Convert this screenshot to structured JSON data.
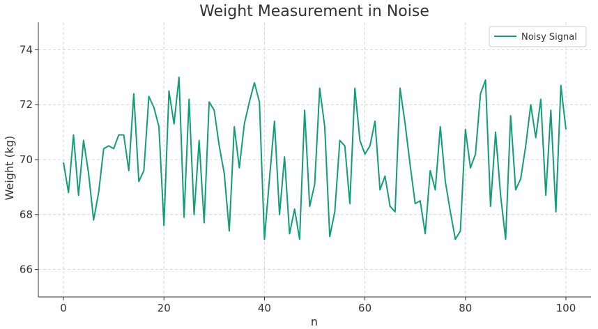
{
  "chart_data": {
    "type": "line",
    "title": "Weight Measurement in Noise",
    "xlabel": "n",
    "ylabel": "Weight (kg)",
    "xlim": [
      -5,
      105
    ],
    "ylim": [
      65,
      75
    ],
    "xticks": [
      0,
      20,
      40,
      60,
      80,
      100
    ],
    "yticks": [
      66,
      68,
      70,
      72,
      74
    ],
    "grid": true,
    "legend_position": "top-right",
    "line_color": "#139c79",
    "series": [
      {
        "name": "Noisy Signal",
        "x": [
          0,
          1,
          2,
          3,
          4,
          5,
          6,
          7,
          8,
          9,
          10,
          11,
          12,
          13,
          14,
          15,
          16,
          17,
          18,
          19,
          20,
          21,
          22,
          23,
          24,
          25,
          26,
          27,
          28,
          29,
          30,
          31,
          32,
          33,
          34,
          35,
          36,
          37,
          38,
          39,
          40,
          41,
          42,
          43,
          44,
          45,
          46,
          47,
          48,
          49,
          50,
          51,
          52,
          53,
          54,
          55,
          56,
          57,
          58,
          59,
          60,
          61,
          62,
          63,
          64,
          65,
          66,
          67,
          68,
          69,
          70,
          71,
          72,
          73,
          74,
          75,
          76,
          77,
          78,
          79,
          80,
          81,
          82,
          83,
          84,
          85,
          86,
          87,
          88,
          89,
          90,
          91,
          92,
          93,
          94,
          95,
          96,
          97,
          98,
          99,
          100
        ],
        "values": [
          69.9,
          68.8,
          70.9,
          68.7,
          70.7,
          69.5,
          67.8,
          68.8,
          70.4,
          70.5,
          70.4,
          70.9,
          70.9,
          69.6,
          72.4,
          69.2,
          69.6,
          72.3,
          71.9,
          71.2,
          67.6,
          72.5,
          71.3,
          73.0,
          67.9,
          72.2,
          68.0,
          70.7,
          67.7,
          72.1,
          71.8,
          70.5,
          69.5,
          67.4,
          71.2,
          69.7,
          71.3,
          72.1,
          72.8,
          72.1,
          67.1,
          69.3,
          71.4,
          68.0,
          70.1,
          67.3,
          68.2,
          67.1,
          71.8,
          68.3,
          69.1,
          72.6,
          71.2,
          67.2,
          68.1,
          70.7,
          70.5,
          68.4,
          72.6,
          70.7,
          70.2,
          70.5,
          71.4,
          68.9,
          69.4,
          68.3,
          68.1,
          72.6,
          71.3,
          69.8,
          68.4,
          68.5,
          67.3,
          69.6,
          68.9,
          71.2,
          69.2,
          68.1,
          67.1,
          67.4,
          71.1,
          69.7,
          70.2,
          72.4,
          72.9,
          68.3,
          71.0,
          68.7,
          67.1,
          71.6,
          68.9,
          69.3,
          70.5,
          72.0,
          70.8,
          72.2,
          68.7,
          71.8,
          68.1,
          72.7,
          71.1
        ]
      }
    ]
  }
}
